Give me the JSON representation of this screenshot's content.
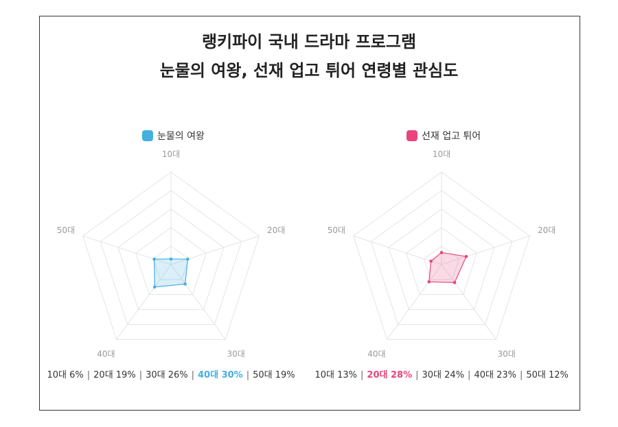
{
  "title": {
    "line1": "랭키파이 국내 드라마 프로그램",
    "line2": "눈물의 여왕, 선재 업고 튀어 연령별 관심도"
  },
  "colors": {
    "series1": "#45afe0",
    "series2": "#e8457b",
    "grid": "#e4e4e4",
    "axis_label": "#999999"
  },
  "chart_data": [
    {
      "type": "radar",
      "categories": [
        "10대",
        "20대",
        "30대",
        "40대",
        "50대"
      ],
      "series": [
        {
          "name": "눈물의 여왕",
          "values": [
            6,
            19,
            26,
            30,
            19
          ]
        }
      ],
      "rlim": [
        0,
        100
      ],
      "grid_levels": 5,
      "legend": "top",
      "summary": [
        {
          "label": "10대",
          "value": "6%",
          "highlight": false
        },
        {
          "label": "20대",
          "value": "19%",
          "highlight": false
        },
        {
          "label": "30대",
          "value": "26%",
          "highlight": false
        },
        {
          "label": "40대",
          "value": "30%",
          "highlight": true
        },
        {
          "label": "50대",
          "value": "19%",
          "highlight": false
        }
      ]
    },
    {
      "type": "radar",
      "categories": [
        "10대",
        "20대",
        "30대",
        "40대",
        "50대"
      ],
      "series": [
        {
          "name": "선재 업고 튀어",
          "values": [
            13,
            28,
            24,
            23,
            12
          ]
        }
      ],
      "rlim": [
        0,
        100
      ],
      "grid_levels": 5,
      "legend": "top",
      "summary": [
        {
          "label": "10대",
          "value": "13%",
          "highlight": false
        },
        {
          "label": "20대",
          "value": "28%",
          "highlight": true
        },
        {
          "label": "30대",
          "value": "24%",
          "highlight": false
        },
        {
          "label": "40대",
          "value": "23%",
          "highlight": false
        },
        {
          "label": "50대",
          "value": "12%",
          "highlight": false
        }
      ]
    }
  ]
}
